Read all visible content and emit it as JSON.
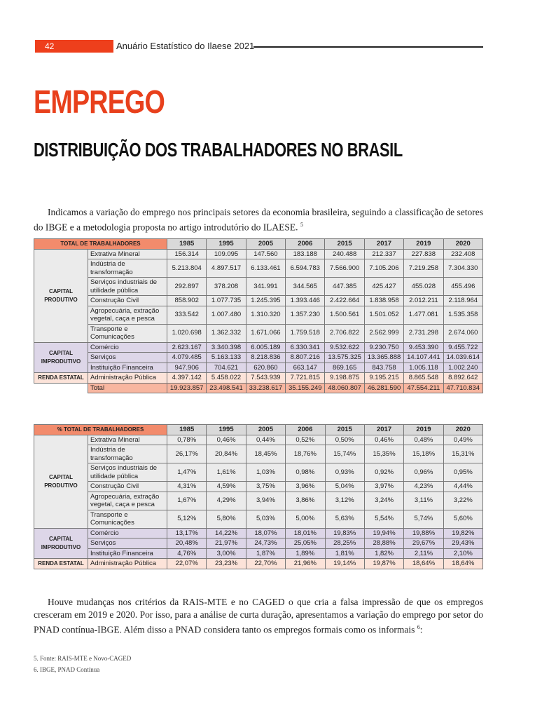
{
  "header": {
    "page_number": "42",
    "running_title": "Anuário Estatístico do Ilaese 2021"
  },
  "title": "EMPREGO",
  "subtitle": "DISTRIBUIÇÃO DOS TRABALHADORES NO BRASIL",
  "paragraph1": {
    "text": "Indicamos a variação do emprego nos principais setores da economia brasileira, seguindo a classificação de setores do IBGE e a metodologia proposta no artigo introdutório do ILAESE.",
    "note": "5"
  },
  "table1": {
    "header": [
      "TOTAL DE TRABALHADORES",
      "1985",
      "1995",
      "2005",
      "2006",
      "2015",
      "2017",
      "2019",
      "2020"
    ],
    "groups": [
      {
        "label": "CAPITAL PRODUTIVO",
        "rows": [
          {
            "sector": "Extrativa Mineral",
            "values": [
              "156.314",
              "109.095",
              "147.560",
              "183.188",
              "240.488",
              "212.337",
              "227.838",
              "232.408"
            ]
          },
          {
            "sector": "Indústria de transformação",
            "values": [
              "5.213.804",
              "4.897.517",
              "6.133.461",
              "6.594.783",
              "7.566.900",
              "7.105.206",
              "7.219.258",
              "7.304.330"
            ]
          },
          {
            "sector": "Serviços industriais de utilidade pública",
            "values": [
              "292.897",
              "378.208",
              "341.991",
              "344.565",
              "447.385",
              "425.427",
              "455.028",
              "455.496"
            ]
          },
          {
            "sector": "Construção Civil",
            "values": [
              "858.902",
              "1.077.735",
              "1.245.395",
              "1.393.446",
              "2.422.664",
              "1.838.958",
              "2.012.211",
              "2.118.964"
            ]
          },
          {
            "sector": "Agropecuária, extração vegetal, caça e pesca",
            "values": [
              "333.542",
              "1.007.480",
              "1.310.320",
              "1.357.230",
              "1.500.561",
              "1.501.052",
              "1.477.081",
              "1.535.358"
            ]
          },
          {
            "sector": "Transporte e Comunicações",
            "values": [
              "1.020.698",
              "1.362.332",
              "1.671.066",
              "1.759.518",
              "2.706.822",
              "2.562.999",
              "2.731.298",
              "2.674.060"
            ]
          }
        ]
      },
      {
        "label": "CAPITAL IMPRODUTIVO",
        "rows": [
          {
            "sector": "Comércio",
            "values": [
              "2.623.167",
              "3.340.398",
              "6.005.189",
              "6.330.341",
              "9.532.622",
              "9.230.750",
              "9.453.390",
              "9.455.722"
            ]
          },
          {
            "sector": "Serviços",
            "values": [
              "4.079.485",
              "5.163.133",
              "8.218.836",
              "8.807.216",
              "13.575.325",
              "13.365.888",
              "14.107.441",
              "14.039.614"
            ]
          },
          {
            "sector": "Instituição Financeira",
            "values": [
              "947.906",
              "704.621",
              "620.860",
              "663.147",
              "869.165",
              "843.758",
              "1.005.118",
              "1.002.240"
            ]
          }
        ]
      },
      {
        "label": "RENDA ESTATAL",
        "rows": [
          {
            "sector": "Administração Pública",
            "values": [
              "4.397.142",
              "5.458.022",
              "7.543.939",
              "7.721.815",
              "9.198.875",
              "9.195.215",
              "8.865.548",
              "8.892.642"
            ]
          }
        ]
      }
    ],
    "total": {
      "sector": "Total",
      "values": [
        "19.923.857",
        "23.498.541",
        "33.238.617",
        "35.155.249",
        "48.060.807",
        "46.281.590",
        "47.554.211",
        "47.710.834"
      ]
    }
  },
  "table2": {
    "header": [
      "% TOTAL DE TRABALHADORES",
      "1985",
      "1995",
      "2005",
      "2006",
      "2015",
      "2017",
      "2019",
      "2020"
    ],
    "groups": [
      {
        "label": "CAPITAL PRODUTIVO",
        "rows": [
          {
            "sector": "Extrativa Mineral",
            "values": [
              "0,78%",
              "0,46%",
              "0,44%",
              "0,52%",
              "0,50%",
              "0,46%",
              "0,48%",
              "0,49%"
            ]
          },
          {
            "sector": "Indústria de transformação",
            "values": [
              "26,17%",
              "20,84%",
              "18,45%",
              "18,76%",
              "15,74%",
              "15,35%",
              "15,18%",
              "15,31%"
            ]
          },
          {
            "sector": "Serviços industriais de utilidade pública",
            "values": [
              "1,47%",
              "1,61%",
              "1,03%",
              "0,98%",
              "0,93%",
              "0,92%",
              "0,96%",
              "0,95%"
            ]
          },
          {
            "sector": "Construção Civil",
            "values": [
              "4,31%",
              "4,59%",
              "3,75%",
              "3,96%",
              "5,04%",
              "3,97%",
              "4,23%",
              "4,44%"
            ]
          },
          {
            "sector": "Agropecuária, extração vegetal, caça e pesca",
            "values": [
              "1,67%",
              "4,29%",
              "3,94%",
              "3,86%",
              "3,12%",
              "3,24%",
              "3,11%",
              "3,22%"
            ]
          },
          {
            "sector": "Transporte e Comunicações",
            "values": [
              "5,12%",
              "5,80%",
              "5,03%",
              "5,00%",
              "5,63%",
              "5,54%",
              "5,74%",
              "5,60%"
            ]
          }
        ]
      },
      {
        "label": "CAPITAL IMPRODUTIVO",
        "rows": [
          {
            "sector": "Comércio",
            "values": [
              "13,17%",
              "14,22%",
              "18,07%",
              "18,01%",
              "19,83%",
              "19,94%",
              "19,88%",
              "19,82%"
            ]
          },
          {
            "sector": "Serviços",
            "values": [
              "20,48%",
              "21,97%",
              "24,73%",
              "25,05%",
              "28,25%",
              "28,88%",
              "29,67%",
              "29,43%"
            ]
          },
          {
            "sector": "Instituição Financeira",
            "values": [
              "4,76%",
              "3,00%",
              "1,87%",
              "1,89%",
              "1,81%",
              "1,82%",
              "2,11%",
              "2,10%"
            ]
          }
        ]
      },
      {
        "label": "RENDA ESTATAL",
        "rows": [
          {
            "sector": "Administração Pública",
            "values": [
              "22,07%",
              "23,23%",
              "22,70%",
              "21,96%",
              "19,14%",
              "19,87%",
              "18,64%",
              "18,64%"
            ]
          }
        ]
      }
    ]
  },
  "paragraph2": {
    "text": "Houve mudanças nos critérios da RAIS-MTE e no CAGED o que cria a falsa impressão de que os empregos cresceram em 2019 e 2020. Por isso, para a análise de curta duração, apresentamos a variação do emprego por setor do PNAD contínua-IBGE. Além disso a PNAD considera tanto os empregos formais como os informais",
    "note": "6",
    "end": ":"
  },
  "footnotes": [
    "5. Fonte: RAIS-MTE e Novo-CAGED",
    "6.  IBGE, PNAD Contínua"
  ]
}
